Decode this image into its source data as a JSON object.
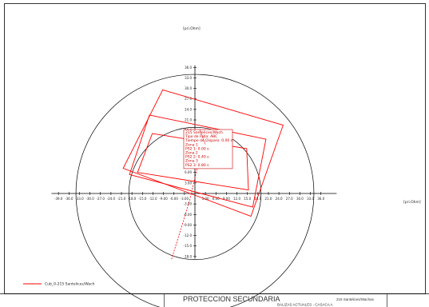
{
  "chart_data": {
    "type": "scatter",
    "plane": "impedance R-X diagram",
    "unit_label": "[pri.Ohm]",
    "x_ticks": [
      -39.0,
      -36.0,
      -33.0,
      -30.0,
      -27.0,
      -24.0,
      -21.0,
      -18.0,
      -15.0,
      -12.0,
      -9.0,
      -6.0,
      -3.0,
      3.0,
      6.0,
      9.0,
      12.0,
      15.0,
      18.0,
      21.0,
      24.0,
      27.0,
      30.0,
      33.0,
      36.0
    ],
    "x_tick_labels": [
      "-39.0",
      "-36.0",
      "-33.0",
      "-30.0",
      "-27.0",
      "-24.0",
      "-21.0",
      "-18.0",
      "-15.0",
      "-12.0",
      "-9.00",
      "-6.00",
      "-3.00",
      "3.00",
      "6.00",
      "9.00",
      "12.0",
      "15.0",
      "18.0",
      "21.0",
      "24.0",
      "27.0",
      "30.0",
      "33.0",
      "36.0"
    ],
    "y_ticks": [
      36.0,
      33.0,
      30.0,
      27.0,
      24.0,
      21.0,
      18.0,
      15.0,
      12.0,
      9.0,
      6.0,
      3.0,
      -3.0,
      -6.0,
      -9.0,
      -12.0,
      -15.0,
      -18.0
    ],
    "y_tick_labels": [
      "36.0",
      "33.0",
      "30.0",
      "27.0",
      "24.0",
      "21.0",
      "18.0",
      "15.0",
      "12.0",
      "9.00",
      "6.00",
      "3.00",
      "-3.00",
      "-6.00",
      "-9.00",
      "-12.0",
      "-15.0",
      "-18.0"
    ],
    "xlim": [
      -41.0,
      40.5
    ],
    "ylim": [
      -18.6,
      36.6
    ],
    "circles": [
      {
        "cx": 0,
        "cy": 0,
        "r": 34.0
      },
      {
        "cx": 0,
        "cy": 0,
        "r": 18.9
      }
    ],
    "zones": [
      {
        "name": "zone 1",
        "corners": [
          [
            -12.2,
            17.1
          ],
          [
            14.8,
            12.8
          ],
          [
            15.3,
            1.0
          ],
          [
            -16.4,
            6.0
          ]
        ]
      },
      {
        "name": "zone 2",
        "corners": [
          [
            -13.0,
            22.4
          ],
          [
            20.3,
            15.5
          ],
          [
            16.5,
            -3.9
          ],
          [
            -18.7,
            5.4
          ]
        ]
      },
      {
        "name": "zone 3",
        "corners": [
          [
            -9.2,
            29.6
          ],
          [
            25.2,
            19.5
          ],
          [
            16.0,
            -6.5
          ],
          [
            -20.5,
            7.2
          ]
        ]
      }
    ],
    "fault_line": [
      [
        -6.7,
        -18.8
      ],
      [
        -1.6,
        -2.3
      ],
      [
        2.3,
        14.3
      ]
    ],
    "annotation_anchor": [
      3.0,
      14.2
    ],
    "annotation_lines": [
      "215 Santelices/Wach",
      "Tipo de Falla: ABC",
      "Tiempo de Disparo: 0.00 s",
      "Zona 1",
      "  PS2 1: 0.00 s",
      "Zona 2",
      "  PS2 2: 0.40 s",
      "Zona 3",
      "  PS2 3: 0.80 s"
    ],
    "legend": [
      {
        "label": "Cub_0-215 Santelices/Wach",
        "color": "#ff0000"
      }
    ],
    "colors": {
      "zones": "#ff0000",
      "circles": "#000000",
      "axes": "#000000",
      "fault": "#ff0000"
    }
  },
  "footer": {
    "title": "PROTECCION SECUNDARIA",
    "right_label": "215 Santelices/Wachas",
    "sub_label": "BALIZAS ACTUALES - CASACA A"
  }
}
